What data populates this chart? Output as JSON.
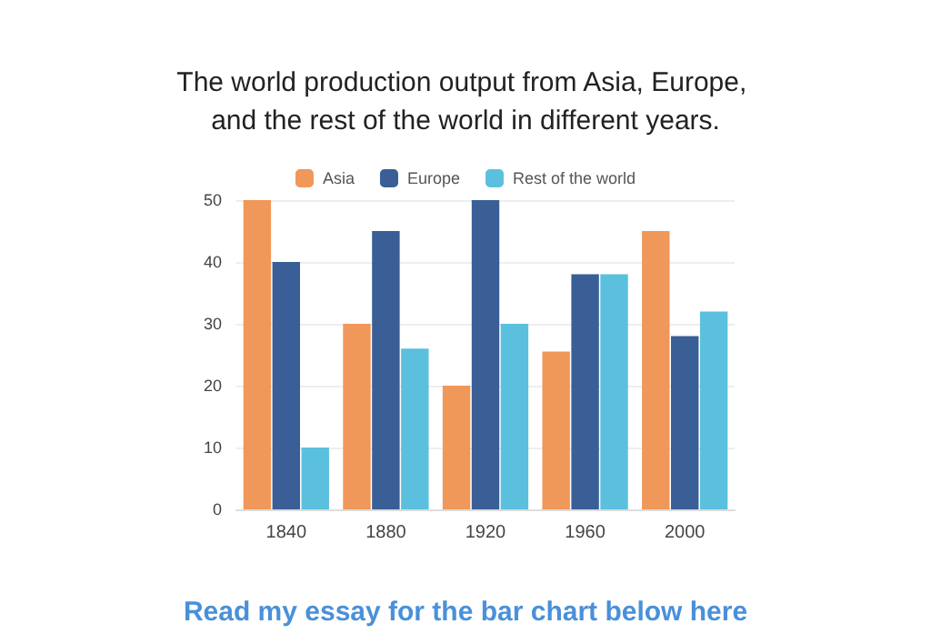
{
  "chart_data": {
    "type": "bar",
    "title": "The world production output from Asia, Europe, and the rest of the world in different years.",
    "categories": [
      "1840",
      "1880",
      "1920",
      "1960",
      "2000"
    ],
    "series": [
      {
        "name": "Asia",
        "color": "#f0975a",
        "values": [
          50,
          30,
          20,
          25.5,
          45
        ]
      },
      {
        "name": "Europe",
        "color": "#3a5e96",
        "values": [
          40,
          45,
          50,
          38,
          28
        ]
      },
      {
        "name": "Rest of the world",
        "color": "#5bc0de",
        "values": [
          10,
          26,
          30,
          38,
          32
        ]
      }
    ],
    "ylim": [
      0,
      50
    ],
    "yticks": [
      0,
      10,
      20,
      30,
      40,
      50
    ],
    "grid": "y",
    "legend": "top",
    "annotations": [
      "Read my essay for the bar chart below here"
    ]
  }
}
